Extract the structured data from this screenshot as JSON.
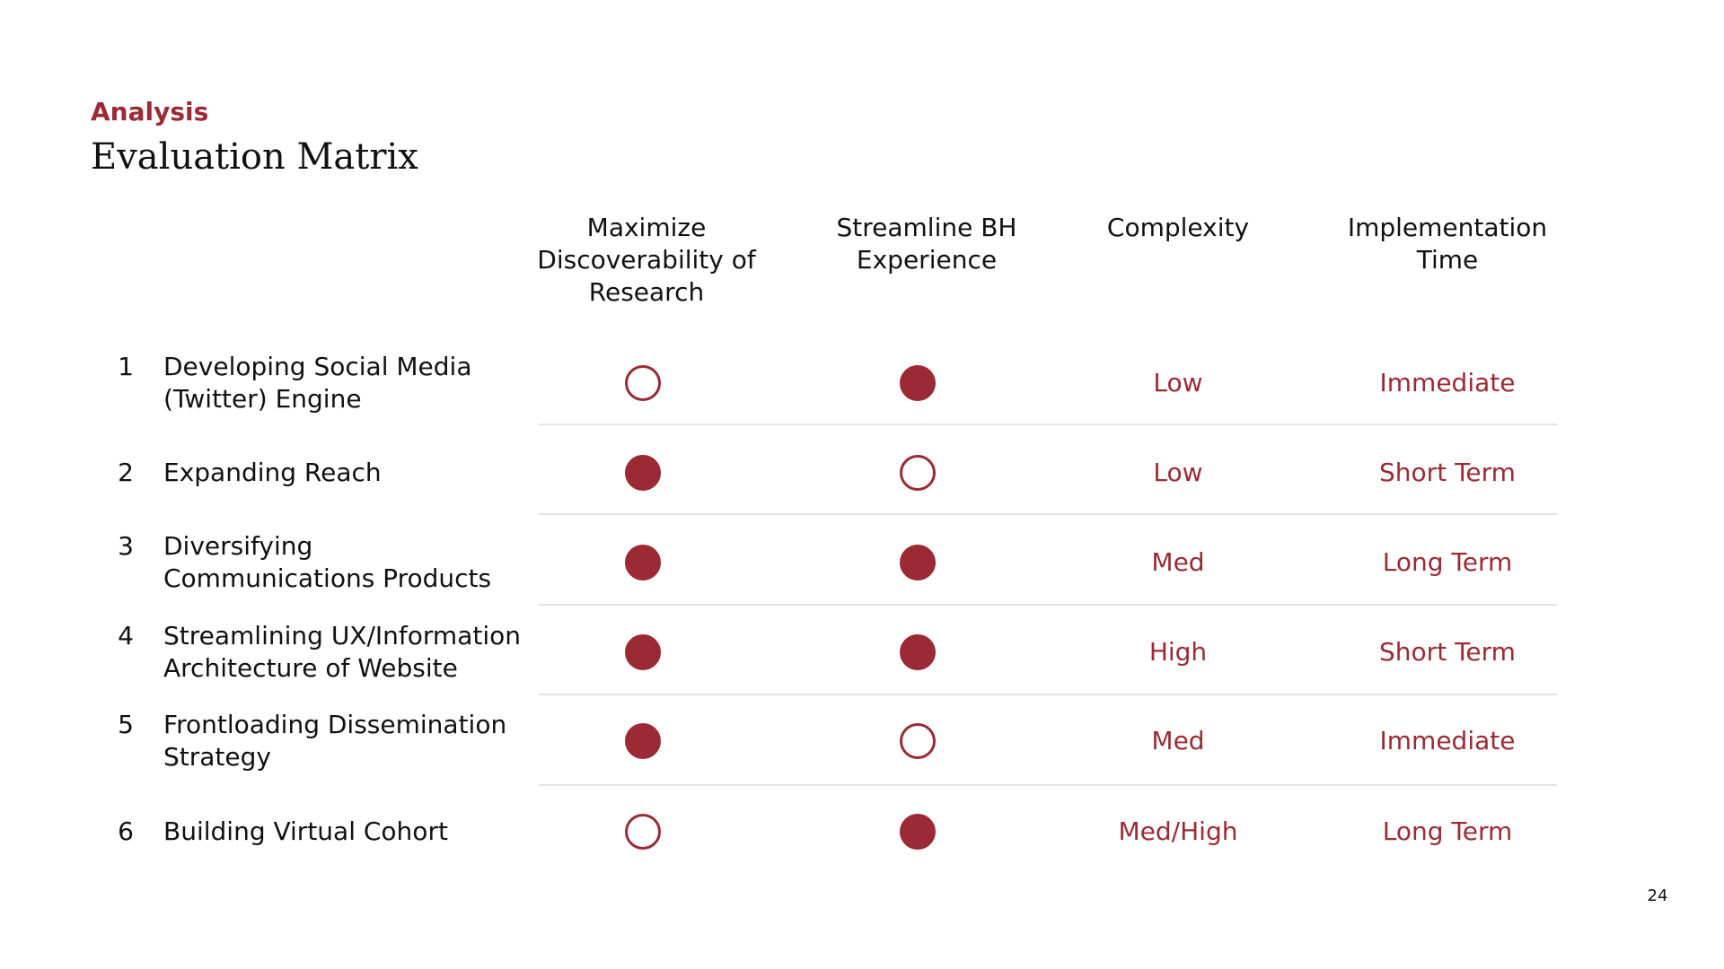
{
  "slide": {
    "section": "Analysis",
    "title": "Evaluation Matrix",
    "page_number": "24"
  },
  "columns": [
    "Maximize Discoverability of Research",
    "Streamline BH Experience",
    "Complexity",
    "Implementation Time"
  ],
  "rows": [
    {
      "num": "1",
      "label": "Developing Social Media (Twitter) Engine",
      "discoverability": false,
      "streamline": true,
      "complexity": "Low",
      "time": "Immediate"
    },
    {
      "num": "2",
      "label": "Expanding Reach",
      "discoverability": true,
      "streamline": false,
      "complexity": "Low",
      "time": "Short Term"
    },
    {
      "num": "3",
      "label": "Diversifying Communications Products",
      "discoverability": true,
      "streamline": true,
      "complexity": "Med",
      "time": "Long Term"
    },
    {
      "num": "4",
      "label": "Streamlining UX/Information Architecture of Website",
      "discoverability": true,
      "streamline": true,
      "complexity": "High",
      "time": "Short Term"
    },
    {
      "num": "5",
      "label": "Frontloading Dissemination Strategy",
      "discoverability": true,
      "streamline": false,
      "complexity": "Med",
      "time": "Immediate"
    },
    {
      "num": "6",
      "label": "Building Virtual Cohort",
      "discoverability": false,
      "streamline": true,
      "complexity": "Med/High",
      "time": "Long Term"
    }
  ],
  "colors": {
    "accent": "#9b2a35",
    "divider": "#e3e3e3"
  }
}
